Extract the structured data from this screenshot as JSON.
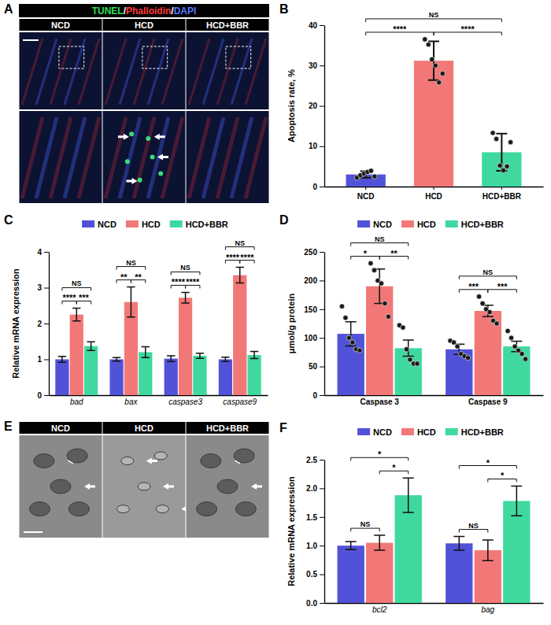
{
  "figure": {
    "panels": [
      {
        "label": "A",
        "header": [
          {
            "text": "TUNEL",
            "color": "#33dd55"
          },
          {
            "text": "/",
            "color": "#ffffff"
          },
          {
            "text": "Phalloidin",
            "color": "#ff3b3b"
          },
          {
            "text": "/",
            "color": "#ffffff"
          },
          {
            "text": "DAPI",
            "color": "#5a78ff"
          }
        ],
        "columns": [
          "NCD",
          "HCD",
          "HCD+BBR"
        ]
      },
      {
        "label": "E",
        "columns": [
          "NCD",
          "HCD",
          "HCD+BBR"
        ]
      }
    ]
  },
  "chart_data": [
    {
      "type": "bar",
      "title": "B",
      "y_label": "Apoptosis rate, %",
      "categories": [
        "NCD",
        "HCD",
        "HCD+BBR"
      ],
      "values": [
        3.0,
        31.2,
        8.5
      ],
      "errors": [
        0.8,
        4.8,
        4.6
      ],
      "points": [
        [
          2.2,
          2.8,
          3.2,
          3.6,
          3.9,
          2.5
        ],
        [
          36.5,
          35.2,
          31.5,
          30.0,
          25.8,
          28.0
        ],
        [
          13.3,
          11.8,
          5.2,
          4.0,
          5.0,
          11.0
        ]
      ],
      "colors": [
        "#5252d8",
        "#f27878",
        "#3fd9a0"
      ],
      "ylim": [
        0,
        40
      ],
      "yticks": [
        0,
        10,
        20,
        30,
        40
      ],
      "annotations": [
        {
          "from": 0,
          "to": 1,
          "text": "****"
        },
        {
          "from": 1,
          "to": 2,
          "text": "****"
        },
        {
          "from": 0,
          "to": 2,
          "text": "NS"
        }
      ]
    },
    {
      "type": "bar",
      "title": "C",
      "y_label": "Relative mRNA expression",
      "categories": [
        "bad",
        "bax",
        "caspase3",
        "caspase9"
      ],
      "series": [
        {
          "name": "NCD",
          "color": "#5252d8",
          "values": [
            1.0,
            1.0,
            1.02,
            1.0
          ],
          "errors": [
            0.08,
            0.05,
            0.08,
            0.06
          ]
        },
        {
          "name": "HCD",
          "color": "#f27878",
          "values": [
            2.25,
            2.6,
            2.72,
            3.35
          ],
          "errors": [
            0.18,
            0.42,
            0.15,
            0.22
          ]
        },
        {
          "name": "HCD+BBR",
          "color": "#3fd9a0",
          "values": [
            1.37,
            1.2,
            1.1,
            1.12
          ],
          "errors": [
            0.12,
            0.15,
            0.07,
            0.1
          ]
        }
      ],
      "ylim": [
        0,
        4
      ],
      "yticks": [
        0,
        1,
        2,
        3,
        4
      ],
      "legend": "top",
      "annotations": [
        {
          "category": 0,
          "from": 0,
          "to": 1,
          "text": "****"
        },
        {
          "category": 0,
          "from": 1,
          "to": 2,
          "text": "***"
        },
        {
          "category": 0,
          "from": 0,
          "to": 2,
          "text": "NS"
        },
        {
          "category": 1,
          "from": 0,
          "to": 1,
          "text": "**"
        },
        {
          "category": 1,
          "from": 1,
          "to": 2,
          "text": "**"
        },
        {
          "category": 1,
          "from": 0,
          "to": 2,
          "text": "NS"
        },
        {
          "category": 2,
          "from": 0,
          "to": 1,
          "text": "****"
        },
        {
          "category": 2,
          "from": 1,
          "to": 2,
          "text": "****"
        },
        {
          "category": 2,
          "from": 0,
          "to": 2,
          "text": "NS"
        },
        {
          "category": 3,
          "from": 0,
          "to": 1,
          "text": "****"
        },
        {
          "category": 3,
          "from": 1,
          "to": 2,
          "text": "****"
        },
        {
          "category": 3,
          "from": 0,
          "to": 2,
          "text": "NS"
        }
      ]
    },
    {
      "type": "bar",
      "title": "D",
      "y_label": "μmol/g protein",
      "categories": [
        "Caspase 3",
        "Caspase 9"
      ],
      "series": [
        {
          "name": "NCD",
          "color": "#5252d8",
          "values": [
            107,
            80
          ],
          "errors": [
            21,
            9
          ],
          "points": [
            [
              155,
              135,
              100,
              92,
              80,
              78
            ],
            [
              95,
              92,
              85,
              72,
              68,
              65
            ]
          ]
        },
        {
          "name": "HCD",
          "color": "#f27878",
          "values": [
            190,
            147
          ],
          "errors": [
            30,
            10
          ],
          "points": [
            [
              230,
              218,
              200,
              195,
              160,
              137
            ],
            [
              172,
              160,
              150,
              145,
              130,
              125
            ]
          ]
        },
        {
          "name": "HCD+BBR",
          "color": "#3fd9a0",
          "values": [
            82,
            85
          ],
          "errors": [
            14,
            9
          ],
          "points": [
            [
              122,
              118,
              80,
              62,
              55,
              55
            ],
            [
              112,
              100,
              85,
              78,
              72,
              63
            ]
          ]
        }
      ],
      "ylim": [
        0,
        250
      ],
      "yticks": [
        0,
        50,
        100,
        150,
        200,
        250
      ],
      "legend": "top",
      "annotations": [
        {
          "category": 0,
          "from": 0,
          "to": 1,
          "text": "*"
        },
        {
          "category": 0,
          "from": 1,
          "to": 2,
          "text": "**"
        },
        {
          "category": 0,
          "from": 0,
          "to": 2,
          "text": "NS"
        },
        {
          "category": 1,
          "from": 0,
          "to": 1,
          "text": "***"
        },
        {
          "category": 1,
          "from": 1,
          "to": 2,
          "text": "***"
        },
        {
          "category": 1,
          "from": 0,
          "to": 2,
          "text": "NS"
        }
      ]
    },
    {
      "type": "bar",
      "title": "F",
      "y_label": "Relative mRNA expression",
      "categories": [
        "bcl2",
        "bag"
      ],
      "series": [
        {
          "name": "NCD",
          "color": "#5252d8",
          "values": [
            1.0,
            1.04
          ],
          "errors": [
            0.07,
            0.12
          ]
        },
        {
          "name": "HCD",
          "color": "#f27878",
          "values": [
            1.05,
            0.92
          ],
          "errors": [
            0.13,
            0.18
          ]
        },
        {
          "name": "HCD+BBR",
          "color": "#3fd9a0",
          "values": [
            1.88,
            1.78
          ],
          "errors": [
            0.3,
            0.26
          ]
        }
      ],
      "ylim": [
        0,
        2.5
      ],
      "yticks": [
        {
          "value": 0,
          "label": "0.0"
        },
        0.5,
        {
          "value": 1,
          "label": "1.0"
        },
        1.5,
        {
          "value": 2,
          "label": "2.0"
        },
        2.5
      ],
      "legend": "top",
      "annotations": [
        {
          "category": 0,
          "from": 0,
          "to": 1,
          "text": "NS"
        },
        {
          "category": 0,
          "from": 1,
          "to": 2,
          "text": "*"
        },
        {
          "category": 0,
          "from": 0,
          "to": 2,
          "text": "*"
        },
        {
          "category": 1,
          "from": 0,
          "to": 1,
          "text": "NS"
        },
        {
          "category": 1,
          "from": 1,
          "to": 2,
          "text": "*"
        },
        {
          "category": 1,
          "from": 0,
          "to": 2,
          "text": "*"
        }
      ]
    }
  ]
}
